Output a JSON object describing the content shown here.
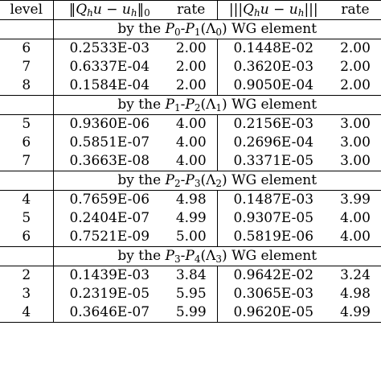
{
  "header": {
    "level": "level",
    "rate": "rate"
  },
  "sections": [
    {
      "pair": [
        "0",
        "1"
      ],
      "lam": "0",
      "label": "WG element",
      "rows": [
        {
          "level": "6",
          "err0": "0.2533E-03",
          "rate0": "2.00",
          "err1": "0.1448E-02",
          "rate1": "2.00"
        },
        {
          "level": "7",
          "err0": "0.6337E-04",
          "rate0": "2.00",
          "err1": "0.3620E-03",
          "rate1": "2.00"
        },
        {
          "level": "8",
          "err0": "0.1584E-04",
          "rate0": "2.00",
          "err1": "0.9050E-04",
          "rate1": "2.00"
        }
      ]
    },
    {
      "pair": [
        "1",
        "2"
      ],
      "lam": "1",
      "label": "WG element",
      "rows": [
        {
          "level": "5",
          "err0": "0.9360E-06",
          "rate0": "4.00",
          "err1": "0.2156E-03",
          "rate1": "3.00"
        },
        {
          "level": "6",
          "err0": "0.5851E-07",
          "rate0": "4.00",
          "err1": "0.2696E-04",
          "rate1": "3.00"
        },
        {
          "level": "7",
          "err0": "0.3663E-08",
          "rate0": "4.00",
          "err1": "0.3371E-05",
          "rate1": "3.00"
        }
      ]
    },
    {
      "pair": [
        "2",
        "3"
      ],
      "lam": "2",
      "label": "WG element",
      "rows": [
        {
          "level": "4",
          "err0": "0.7659E-06",
          "rate0": "4.98",
          "err1": "0.1487E-03",
          "rate1": "3.99"
        },
        {
          "level": "5",
          "err0": "0.2404E-07",
          "rate0": "4.99",
          "err1": "0.9307E-05",
          "rate1": "4.00"
        },
        {
          "level": "6",
          "err0": "0.7521E-09",
          "rate0": "5.00",
          "err1": "0.5819E-06",
          "rate1": "4.00"
        }
      ]
    },
    {
      "pair": [
        "3",
        "4"
      ],
      "lam": "3",
      "label": "WG element",
      "rows": [
        {
          "level": "2",
          "err0": "0.1439E-03",
          "rate0": "3.84",
          "err1": "0.9642E-02",
          "rate1": "3.24"
        },
        {
          "level": "3",
          "err0": "0.2319E-05",
          "rate0": "5.95",
          "err1": "0.3065E-03",
          "rate1": "4.98"
        },
        {
          "level": "4",
          "err0": "0.3646E-07",
          "rate0": "5.99",
          "err1": "0.9620E-05",
          "rate1": "4.99"
        }
      ]
    }
  ]
}
